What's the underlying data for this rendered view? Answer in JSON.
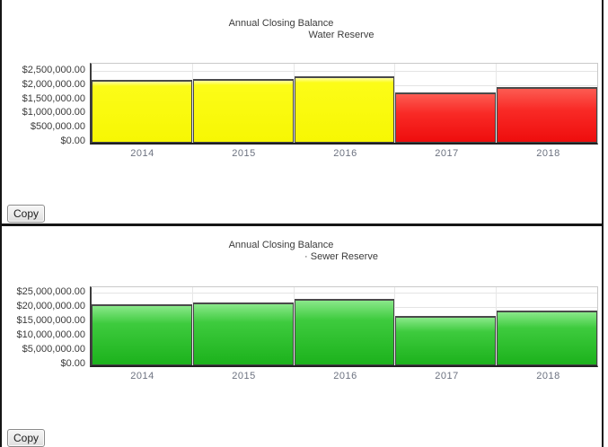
{
  "panels": [
    {
      "title_line1": "Annual Closing Balance",
      "title_line2": "Water Reserve",
      "copy_button": "Copy"
    },
    {
      "title_line1": "Annual Closing Balance",
      "title_line2": "· Sewer Reserve",
      "copy_button": "Copy"
    }
  ],
  "chart_data": [
    {
      "type": "bar",
      "title": "Annual Closing Balance",
      "subtitle": "Water Reserve",
      "categories": [
        "2014",
        "2015",
        "2016",
        "2017",
        "2018"
      ],
      "values": [
        2200000,
        2250000,
        2330000,
        1770000,
        1960000
      ],
      "bar_color_names": [
        "yellow",
        "yellow",
        "yellow",
        "red",
        "red"
      ],
      "bar_colors_hex": {
        "yellow": "#fbfb0c",
        "red": "#f52020"
      },
      "xlabel": "",
      "ylabel": "",
      "ylim": [
        0,
        2500000
      ],
      "grid": true,
      "legend": null,
      "yticks": [
        {
          "label": "$2,500,000.00",
          "value": 2500000
        },
        {
          "label": "$2,000,000.00",
          "value": 2000000
        },
        {
          "label": "$1,500,000.00",
          "value": 1500000
        },
        {
          "label": "$1,000,000.00",
          "value": 1000000
        },
        {
          "label": "$500,000.00",
          "value": 500000
        },
        {
          "label": "$0.00",
          "value": 0
        }
      ]
    },
    {
      "type": "bar",
      "title": "Annual Closing Balance",
      "subtitle": "· Sewer Reserve",
      "categories": [
        "2014",
        "2015",
        "2016",
        "2017",
        "2018"
      ],
      "values": [
        21300000,
        21900000,
        23000000,
        17300000,
        19200000
      ],
      "bar_color_names": [
        "green",
        "green",
        "green",
        "green",
        "green"
      ],
      "bar_colors_hex": {
        "green": "#2fc42f"
      },
      "xlabel": "",
      "ylabel": "",
      "ylim": [
        0,
        25000000
      ],
      "grid": true,
      "legend": null,
      "yticks": [
        {
          "label": "$25,000,000.00",
          "value": 25000000
        },
        {
          "label": "$20,000,000.00",
          "value": 20000000
        },
        {
          "label": "$15,000,000.00",
          "value": 15000000
        },
        {
          "label": "$10,000,000.00",
          "value": 10000000
        },
        {
          "label": "$5,000,000.00",
          "value": 5000000
        },
        {
          "label": "$0.00",
          "value": 0
        }
      ]
    }
  ]
}
